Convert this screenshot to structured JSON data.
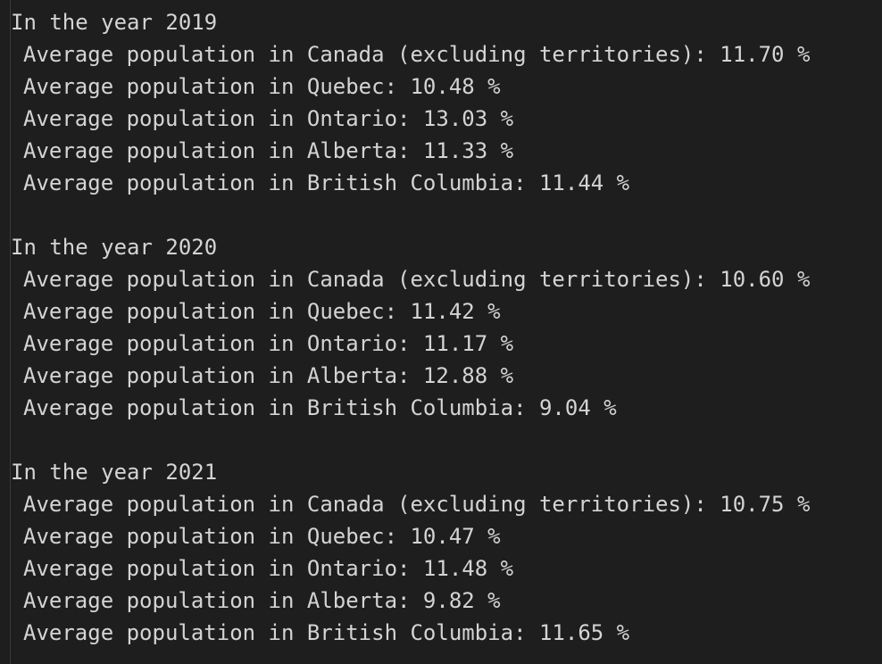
{
  "output": {
    "blocks": [
      {
        "header": "In the year 2019",
        "lines": [
          "Average population in Canada (excluding territories): 11.70 %",
          "Average population in Quebec: 10.48 %",
          "Average population in Ontario: 13.03 %",
          "Average population in Alberta: 11.33 %",
          "Average population in British Columbia: 11.44 %"
        ]
      },
      {
        "header": "In the year 2020",
        "lines": [
          "Average population in Canada (excluding territories): 10.60 %",
          "Average population in Quebec: 11.42 %",
          "Average population in Ontario: 11.17 %",
          "Average population in Alberta: 12.88 %",
          "Average population in British Columbia: 9.04 %"
        ]
      },
      {
        "header": "In the year 2021",
        "lines": [
          "Average population in Canada (excluding territories): 10.75 %",
          "Average population in Quebec: 10.47 %",
          "Average population in Ontario: 11.48 %",
          "Average population in Alberta: 9.82 %",
          "Average population in British Columbia: 11.65 %"
        ]
      }
    ]
  }
}
